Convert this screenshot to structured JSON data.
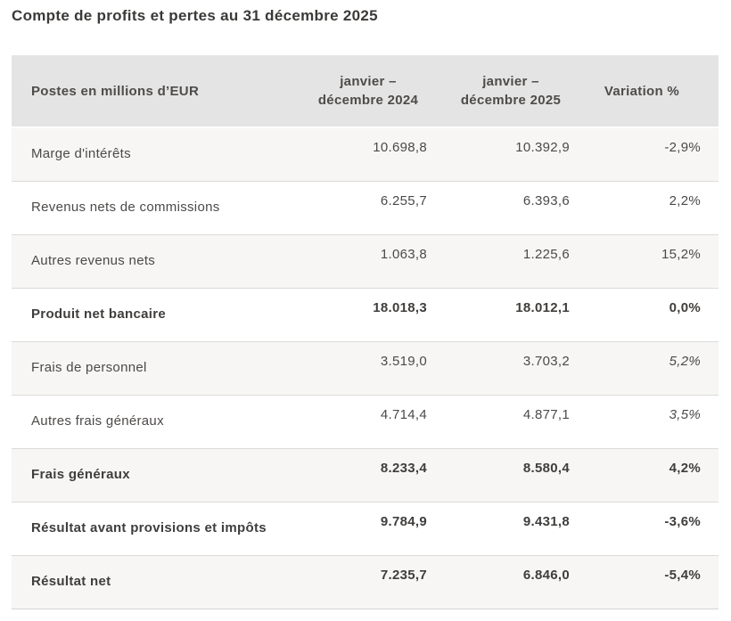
{
  "page": {
    "title": "Compte de profits et pertes au 31 décembre 2025"
  },
  "colors": {
    "header_background": "#e5e4e4",
    "shaded_row_background": "#f7f6f5",
    "row_border": "#dcdbda",
    "text": "#4c4a48",
    "title_text": "#3c3a38"
  },
  "table": {
    "columns": {
      "items_header": "Postes en millions d’EUR",
      "period_2024_line1": "janvier –",
      "period_2024_line2": "décembre 2024",
      "period_2025_line1": "janvier –",
      "period_2025_line2": "décembre 2025",
      "variation_header": "Variation %"
    },
    "rows": [
      {
        "label": "Marge d'intérêts",
        "y2024": "10.698,8",
        "y2025": "10.392,9",
        "variation": "-2,9%"
      },
      {
        "label": "Revenus nets de commissions",
        "y2024": "6.255,7",
        "y2025": "6.393,6",
        "variation": "2,2%"
      },
      {
        "label": "Autres revenus nets",
        "y2024": "1.063,8",
        "y2025": "1.225,6",
        "variation": "15,2%"
      },
      {
        "label": "Produit net bancaire",
        "y2024": "18.018,3",
        "y2025": "18.012,1",
        "variation": "0,0%"
      },
      {
        "label": "Frais de personnel",
        "y2024": "3.519,0",
        "y2025": "3.703,2",
        "variation": "5,2%"
      },
      {
        "label": "Autres frais généraux",
        "y2024": "4.714,4",
        "y2025": "4.877,1",
        "variation": "3,5%"
      },
      {
        "label": "Frais généraux",
        "y2024": "8.233,4",
        "y2025": "8.580,4",
        "variation": "4,2%"
      },
      {
        "label": "Résultat avant provisions et impôts",
        "y2024": "9.784,9",
        "y2025": "9.431,8",
        "variation": "-3,6%"
      },
      {
        "label": "Résultat net",
        "y2024": "7.235,7",
        "y2025": "6.846,0",
        "variation": "-5,4%"
      }
    ]
  }
}
